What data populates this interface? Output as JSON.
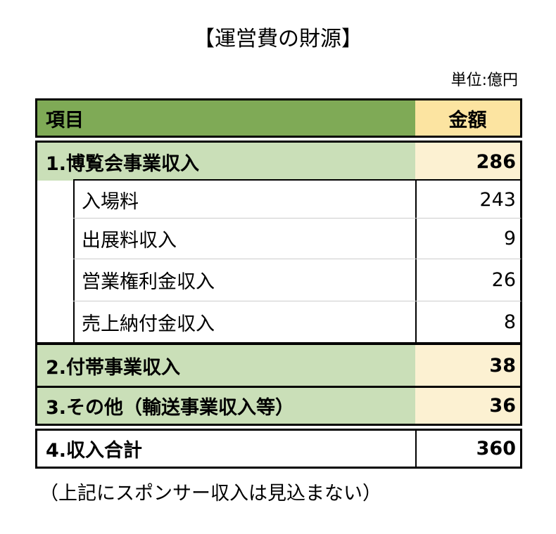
{
  "title": "【運営費の財源】",
  "unit": "単位:億円",
  "header": {
    "item": "項目",
    "amount": "金額"
  },
  "rows": [
    {
      "label": "1.博覧会事業収入",
      "value": "286"
    },
    {
      "label": "入場料",
      "value": "243"
    },
    {
      "label": "出展料収入",
      "value": "9"
    },
    {
      "label": "営業権利金収入",
      "value": "26"
    },
    {
      "label": "売上納付金収入",
      "value": "8"
    },
    {
      "label": "2.付帯事業収入",
      "value": "38"
    },
    {
      "label": "3.その他（輸送事業収入等）",
      "value": "36"
    },
    {
      "label": "4.収入合計",
      "value": "360"
    }
  ],
  "note": "（上記にスポンサー収入は見込まない）",
  "colors": {
    "header_green": "#7faa56",
    "light_green": "#cadfb8",
    "header_yellow": "#fce4a1",
    "light_yellow": "#fcf1d2"
  }
}
